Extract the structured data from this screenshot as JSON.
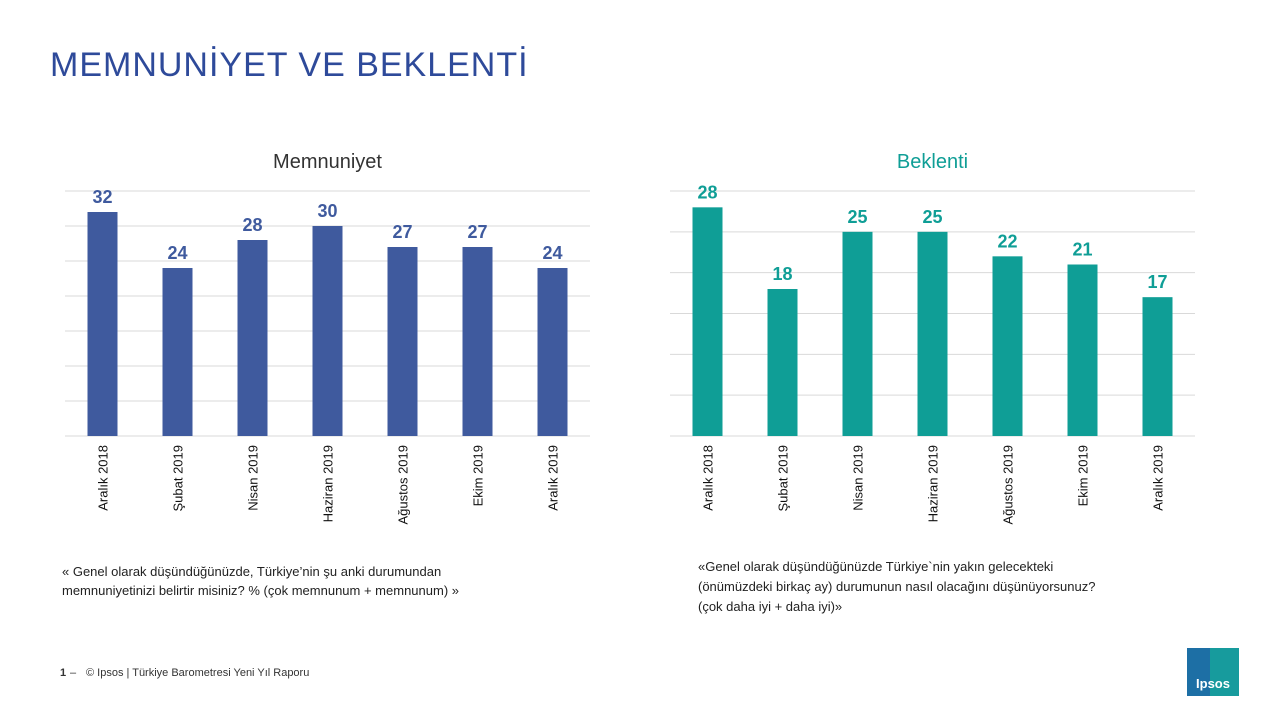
{
  "title": "MEMNUNİYET VE BEKLENTİ",
  "chart_data": [
    {
      "type": "bar",
      "title": "Memnuniyet",
      "color": "#3f5a9e",
      "categories": [
        "Aralık 2018",
        "Şubat 2019",
        "Nisan 2019",
        "Haziran 2019",
        "Ağustos 2019",
        "Ekim 2019",
        "Aralık 2019"
      ],
      "values": [
        32,
        24,
        28,
        30,
        27,
        27,
        24
      ],
      "ylim": [
        0,
        35
      ],
      "yticks": [
        0,
        5,
        10,
        15,
        20,
        25,
        30,
        35
      ],
      "grid": true,
      "ytick_labels": false,
      "note": [
        "« Genel olarak düşündüğünüzde,  Türkiye’nin  şu anki durumundan",
        "memnuniyetinizi  belirtir misiniz?  % (çok memnunum  + memnunum)  »"
      ]
    },
    {
      "type": "bar",
      "title": "Beklenti",
      "color": "#0f9e96",
      "categories": [
        "Aralık  2018",
        "Şubat 2019",
        "Nisan 2019",
        "Haziran 2019",
        "Ağustos 2019",
        "Ekim 2019",
        "Aralık 2019"
      ],
      "values": [
        28,
        18,
        25,
        25,
        22,
        21,
        17
      ],
      "ylim": [
        0,
        30
      ],
      "yticks": [
        0,
        5,
        10,
        15,
        20,
        25,
        30
      ],
      "grid": true,
      "ytick_labels": false,
      "note": [
        "«Genel olarak düşündüğünüzde  Türkiye`nin  yakın  gelecekteki",
        "(önümüzdeki  birkaç ay) durumunun  nasıl olacağını  düşünüyorsunuz?",
        "(çok daha iyi + daha iyi)»"
      ]
    }
  ],
  "footer": {
    "page": "1",
    "text": "© Ipsos | Türkiye Barometresi Yeni Yıl Raporu"
  },
  "logo": "Ipsos"
}
